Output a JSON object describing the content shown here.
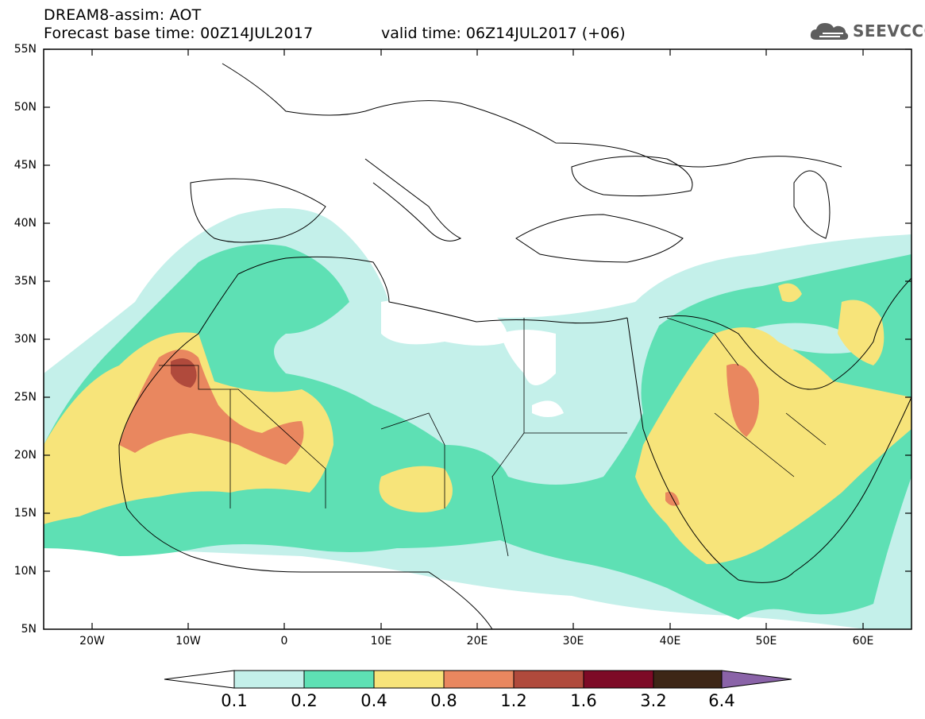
{
  "header": {
    "title": "DREAM8-assim: AOT",
    "base_time": "Forecast base time: 00Z14JUL2017",
    "valid_time": "valid time: 06Z14JUL2017 (+06)",
    "logo_text": "SEEVCCC",
    "logo_icon": "cloud-icon"
  },
  "map": {
    "lon_range": [
      -25,
      65
    ],
    "lat_range": [
      5,
      55
    ],
    "lat_labels": [
      "55N",
      "50N",
      "45N",
      "40N",
      "35N",
      "30N",
      "25N",
      "20N",
      "15N",
      "10N",
      "5N"
    ],
    "lon_labels": [
      "20W",
      "10W",
      "0",
      "10E",
      "20E",
      "30E",
      "40E",
      "50E",
      "60E"
    ],
    "grid": false
  },
  "colorbar": {
    "labels": [
      "0.1",
      "0.2",
      "0.4",
      "0.8",
      "1.2",
      "1.6",
      "3.2",
      "6.4"
    ],
    "colors": [
      "#ffffff",
      "#c4f0ea",
      "#5ee0b4",
      "#f7e47a",
      "#e9875f",
      "#b04a3c",
      "#7d0a26",
      "#3d2616",
      "#8a63a8"
    ]
  }
}
